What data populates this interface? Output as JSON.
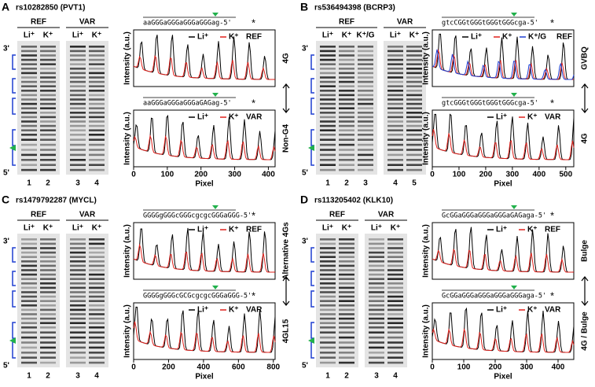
{
  "panels": [
    {
      "letter": "A",
      "title": "rs10282850 (PVT1)",
      "gels": [
        {
          "label": "REF",
          "lanes": [
            "Li⁺",
            "K⁺"
          ],
          "numbers": [
            "1",
            "2"
          ]
        },
        {
          "label": "VAR",
          "lanes": [
            "Li⁺",
            "K⁺"
          ],
          "numbers": [
            "3",
            "4"
          ]
        }
      ],
      "ends": [
        "3'",
        "5'"
      ],
      "traces": [
        {
          "sequence": "aaGGGaGGGaGGGaGGGag-5'",
          "star": "*",
          "legend": [
            {
              "name": "Li⁺",
              "color": "#000000"
            },
            {
              "name": "K⁺",
              "color": "#e0201b"
            }
          ],
          "tag": "REF"
        },
        {
          "sequence": "aaGGGaGGGaGGGaGAGag-5'",
          "star": "*",
          "legend": [
            {
              "name": "Li⁺",
              "color": "#000000"
            },
            {
              "name": "K⁺",
              "color": "#e0201b"
            }
          ],
          "tag": "VAR"
        }
      ],
      "ylabel": "Intensity (a.u.)",
      "xlabel": "Pixel",
      "xlim": [
        0,
        420
      ],
      "xticks": [
        0,
        100,
        200,
        300,
        400
      ],
      "side_labels": [
        "4G",
        "Non-G4"
      ]
    },
    {
      "letter": "B",
      "title": "rs536494398 (BCRP3)",
      "gels": [
        {
          "label": "REF",
          "lanes": [
            "Li⁺",
            "K⁺",
            "K⁺/G"
          ],
          "numbers": [
            "1",
            "2",
            "3"
          ]
        },
        {
          "label": "VAR",
          "lanes": [
            "Li⁺",
            "K⁺"
          ],
          "numbers": [
            "4",
            "5"
          ]
        }
      ],
      "ends": [
        "3'",
        "5'"
      ],
      "traces": [
        {
          "sequence": "gtcCGGtGGGtGGGtGGGcga-5'",
          "star": "*",
          "legend": [
            {
              "name": "Li⁺",
              "color": "#000000"
            },
            {
              "name": "K⁺",
              "color": "#e0201b"
            },
            {
              "name": "K⁺/G",
              "color": "#1f3fd1"
            }
          ],
          "tag": "REF"
        },
        {
          "sequence": "gtcGGGtGGGtGGGtGGGcga-5'",
          "star": "*",
          "legend": [
            {
              "name": "Li⁺",
              "color": "#000000"
            },
            {
              "name": "K⁺",
              "color": "#e0201b"
            }
          ],
          "tag": "VAR"
        }
      ],
      "ylabel": "Intensity (a.u.)",
      "xlabel": "Pixel",
      "xlim": [
        0,
        530
      ],
      "xticks": [
        0,
        100,
        200,
        300,
        400,
        500
      ],
      "side_labels": [
        "GVBQ",
        "4G"
      ]
    },
    {
      "letter": "C",
      "title": "rs1479792287 (MYCL)",
      "gels": [
        {
          "label": "REF",
          "lanes": [
            "Li⁺",
            "K⁺"
          ],
          "numbers": [
            "1",
            "2"
          ]
        },
        {
          "label": "VAR",
          "lanes": [
            "Li⁺",
            "K⁺"
          ],
          "numbers": [
            "3",
            "4"
          ]
        }
      ],
      "ends": [
        "3'",
        "5'"
      ],
      "traces": [
        {
          "sequence": "GGGGgGGGcGGGcgcgcGGGaGGG-5'",
          "star": "*",
          "legend": [
            {
              "name": "Li⁺",
              "color": "#000000"
            },
            {
              "name": "K⁺",
              "color": "#e0201b"
            }
          ],
          "tag": "REF"
        },
        {
          "sequence": "GGGGgGGGcGCGcgcgcGGGaGGG-5'",
          "star": "*",
          "legend": [
            {
              "name": "Li⁺",
              "color": "#000000"
            },
            {
              "name": "K⁺",
              "color": "#e0201b"
            }
          ],
          "tag": "VAR"
        }
      ],
      "ylabel": "Intensity (a.u.)",
      "xlabel": "Pixel",
      "xlim": [
        0,
        810
      ],
      "xticks": [
        0,
        200,
        400,
        600,
        800
      ],
      "side_labels": [
        "Alternative 4Gs",
        "4GL15"
      ]
    },
    {
      "letter": "D",
      "title": "rs113205402 (KLK10)",
      "gels": [
        {
          "label": "REF",
          "lanes": [
            "Li⁺",
            "K⁺"
          ],
          "numbers": [
            "1",
            "2"
          ]
        },
        {
          "label": "VAR",
          "lanes": [
            "Li⁺",
            "K⁺"
          ],
          "numbers": [
            "3",
            "4"
          ]
        }
      ],
      "ends": [
        "3'",
        "5'"
      ],
      "traces": [
        {
          "sequence": "GcGGaGGGaGGGaGGGaGAGaga-5'",
          "star": "*",
          "legend": [
            {
              "name": "Li⁺",
              "color": "#000000"
            },
            {
              "name": "K⁺",
              "color": "#e0201b"
            }
          ],
          "tag": "REF"
        },
        {
          "sequence": "GcGGaGGGaGGGaGGGaGGGaga-5'",
          "star": "*",
          "legend": [
            {
              "name": "Li⁺",
              "color": "#000000"
            },
            {
              "name": "K⁺",
              "color": "#e0201b"
            }
          ],
          "tag": "VAR"
        }
      ],
      "ylabel": "Intensity (a.u.)",
      "xlabel": "Pixel",
      "xlim": [
        0,
        450
      ],
      "xticks": [
        0,
        100,
        200,
        300,
        400
      ],
      "side_labels": [
        "Bulge",
        "4G / Bulge"
      ]
    }
  ]
}
